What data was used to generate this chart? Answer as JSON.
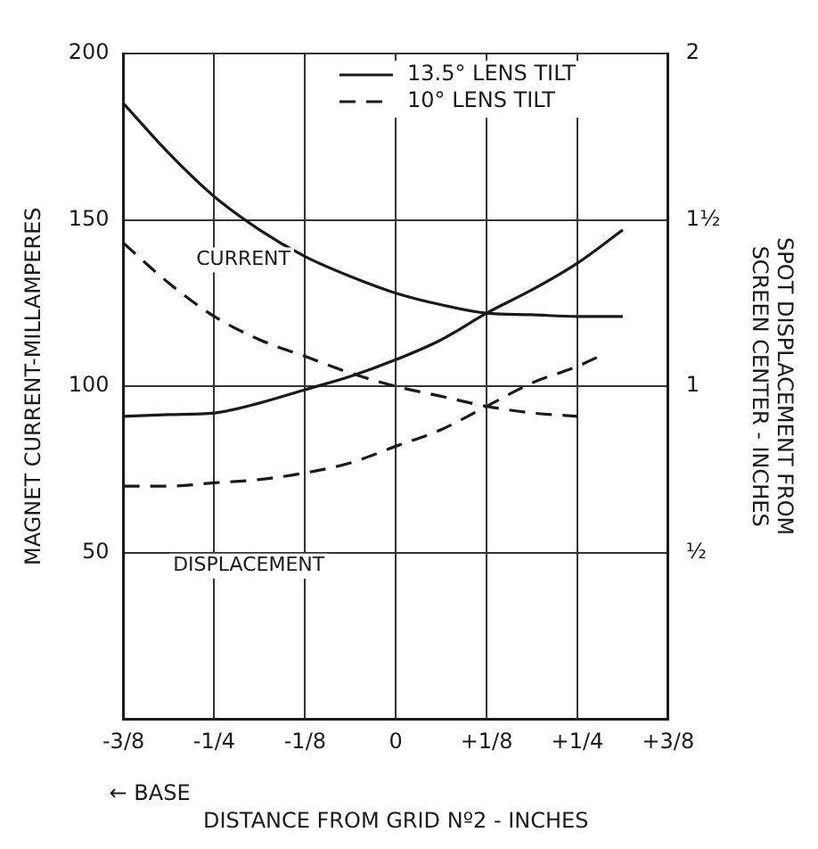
{
  "chart_data": {
    "type": "line",
    "xlabel": "DISTANCE FROM GRID Nº2 - INCHES",
    "ylabel": "MAGNET CURRENT-MILLAMPERES",
    "y2label": "SPOT DISPLACEMENT FROM SCREEN CENTER - INCHES",
    "annotations": [
      "CURRENT",
      "DISPLACEMENT",
      "← BASE"
    ],
    "xlim": [
      -0.375,
      0.375
    ],
    "xticks": [
      {
        "value": -0.375,
        "label": "-3/8"
      },
      {
        "value": -0.25,
        "label": "-1/4"
      },
      {
        "value": -0.125,
        "label": "-1/8"
      },
      0,
      {
        "value": 0.125,
        "label": "+1/8"
      },
      {
        "value": 0.25,
        "label": "+1/4"
      },
      {
        "value": 0.375,
        "label": "+3/8"
      }
    ],
    "ylim": [
      0,
      200
    ],
    "yticks": [
      {
        "value": 0,
        "label": null
      },
      50,
      100,
      150,
      200
    ],
    "y2lim": [
      0,
      2
    ],
    "y2ticks": [
      {
        "value": 0,
        "label": null
      },
      {
        "value": 0.5,
        "label": "½"
      },
      1,
      {
        "value": 1.5,
        "label": "1½"
      },
      2
    ],
    "grid": true,
    "legend": "top right",
    "marker": "none",
    "series": [
      {
        "name": "13.5° LENS TILT",
        "color": "#1a1a1a",
        "line_style": "solid",
        "x": [
          -0.375,
          -0.3125,
          -0.25,
          -0.1875,
          -0.125,
          -0.0625,
          0,
          0.0625,
          0.125,
          0.1875,
          0.25,
          0.3125
        ],
        "values": [
          185,
          170,
          157,
          147,
          139,
          133,
          128,
          124.5,
          122,
          121.5,
          121,
          121
        ]
      },
      {
        "name": "10° LENS TILT",
        "color": "#1a1a1a",
        "line_style": "dashed",
        "x": [
          -0.375,
          -0.3125,
          -0.25,
          -0.1875,
          -0.125,
          -0.0625,
          0,
          0.0625,
          0.125,
          0.1875,
          0.25
        ],
        "values": [
          143,
          131,
          121,
          114,
          109,
          104,
          100,
          97,
          94,
          92,
          91
        ]
      },
      {
        "color": "#1a1a1a",
        "line_style": "solid",
        "axis": "y2",
        "x": [
          -0.375,
          -0.3125,
          -0.25,
          -0.1875,
          -0.125,
          -0.0625,
          0,
          0.0625,
          0.125,
          0.1875,
          0.25,
          0.3125
        ],
        "values": [
          0.91,
          0.915,
          0.92,
          0.95,
          0.99,
          1.03,
          1.08,
          1.14,
          1.22,
          1.29,
          1.37,
          1.47
        ]
      },
      {
        "color": "#1a1a1a",
        "line_style": "dashed",
        "axis": "y2",
        "x": [
          -0.375,
          -0.3125,
          -0.25,
          -0.1875,
          -0.125,
          -0.0625,
          0,
          0.0625,
          0.125,
          0.1875,
          0.25,
          0.28
        ],
        "values": [
          0.7,
          0.7,
          0.71,
          0.72,
          0.74,
          0.77,
          0.82,
          0.87,
          0.94,
          1.01,
          1.06,
          1.09
        ]
      }
    ]
  }
}
